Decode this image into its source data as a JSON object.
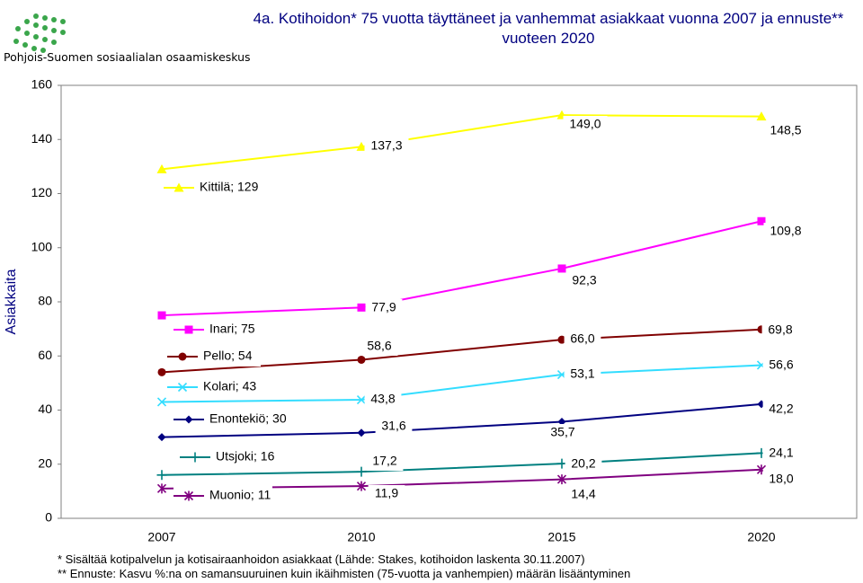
{
  "logo": {
    "name": "Pohjois-Suomen sosiaalialan osaamiskeskus",
    "color": "#3aa64b"
  },
  "title": "4a. Kotihoidon* 75 vuotta täyttäneet ja vanhemmat asiakkaat vuonna 2007 ja ennuste** vuoteen 2020",
  "footnotes": {
    "line1": "* Sisältää kotipalvelun ja kotisairaanhoidon asiakkaat (Lähde: Stakes, kotihoidon laskenta 30.11.2007)",
    "line2": "** Ennuste: Kasvu %:na on samansuuruinen kuin ikäihmisten (75-vuotta ja vanhempien) määrän lisääntyminen"
  },
  "chart_data": {
    "type": "line",
    "title": "4a. Kotihoidon* 75 vuotta täyttäneet ja vanhemmat asiakkaat vuonna 2007 ja ennuste** vuoteen 2020",
    "xlabel": "",
    "ylabel": "Asiakkaita",
    "categories": [
      "2007",
      "2010",
      "2015",
      "2020"
    ],
    "ylim": [
      0,
      160
    ],
    "yticks": [
      0,
      20,
      40,
      60,
      80,
      100,
      120,
      140,
      160
    ],
    "grid": false,
    "series": [
      {
        "name": "Kittilä",
        "legend": "Kittilä; 129",
        "color": "#ffff00",
        "marker": "triangle",
        "values": [
          129,
          137.3,
          149.0,
          148.5
        ],
        "labels": [
          "",
          "137,3",
          "149,0",
          "148,5"
        ]
      },
      {
        "name": "Inari",
        "legend": "Inari; 75",
        "color": "#ff00ff",
        "marker": "square",
        "values": [
          75,
          77.9,
          92.3,
          109.8
        ],
        "labels": [
          "",
          "77,9",
          "92,3",
          "109,8"
        ]
      },
      {
        "name": "Pello",
        "legend": "Pello; 54",
        "color": "#800000",
        "marker": "circle",
        "values": [
          54,
          58.6,
          66.0,
          69.8
        ],
        "labels": [
          "",
          "58,6",
          "66,0",
          "69,8"
        ]
      },
      {
        "name": "Kolari",
        "legend": "Kolari; 43",
        "color": "#33ddff",
        "marker": "x",
        "values": [
          43,
          43.8,
          53.1,
          56.6
        ],
        "labels": [
          "",
          "43,8",
          "53,1",
          "56,6"
        ]
      },
      {
        "name": "Enontekiö",
        "legend": "Enontekiö; 30",
        "color": "#000080",
        "marker": "diamond",
        "values": [
          30,
          31.6,
          35.7,
          42.2
        ],
        "labels": [
          "",
          "31,6",
          "35,7",
          "42,2"
        ]
      },
      {
        "name": "Utsjoki",
        "legend": "Utsjoki; 16",
        "color": "#008080",
        "marker": "plus",
        "values": [
          16,
          17.2,
          20.2,
          24.1
        ],
        "labels": [
          "",
          "17,2",
          "20,2",
          "24,1"
        ]
      },
      {
        "name": "Muonio",
        "legend": "Muonio; 11",
        "color": "#800080",
        "marker": "star",
        "values": [
          11,
          11.9,
          14.4,
          18.0
        ],
        "labels": [
          "",
          "11,9",
          "14,4",
          "18,0"
        ]
      }
    ]
  }
}
